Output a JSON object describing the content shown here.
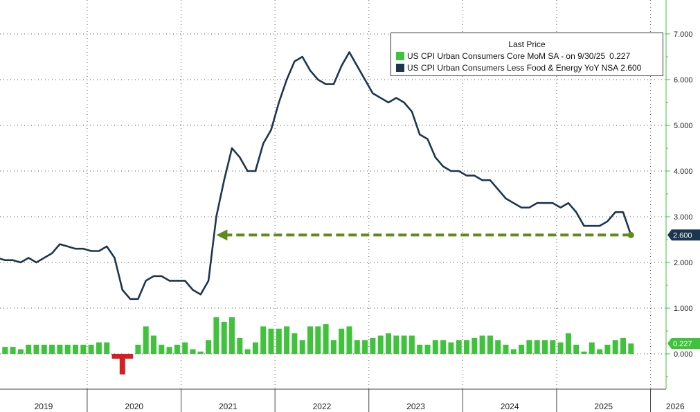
{
  "legend": {
    "title": "Last Price",
    "entries": [
      {
        "label": "US CPI Urban Consumers Core MoM SA -  on 9/30/25",
        "value": "0.227",
        "color": "#3ec33a"
      },
      {
        "label": "US CPI Urban Consumers Less Food & Energy YoY NSA",
        "value": "2.600",
        "color": "#1c3550"
      }
    ]
  },
  "chart_data": {
    "type": "line",
    "title": "",
    "xlabel": "",
    "ylabel": "",
    "ylim": [
      -0.8,
      7.5
    ],
    "yticks": [
      "0.000",
      "1.000",
      "2.000",
      "3.000",
      "4.000",
      "5.000",
      "6.000",
      "7.000"
    ],
    "x_years": [
      "2019",
      "2020",
      "2021",
      "2022",
      "2023",
      "2024",
      "2025",
      "2026"
    ],
    "grid": true,
    "legend_position": "top-right",
    "last_value_tags": {
      "yoy": "2.600",
      "mom": "0.227"
    },
    "series": [
      {
        "name": "US CPI Urban Consumers Less Food & Energy YoY NSA",
        "kind": "line",
        "color": "#1c3550",
        "x": [
          "2018-12",
          "2019-01",
          "2019-02",
          "2019-03",
          "2019-04",
          "2019-05",
          "2019-06",
          "2019-07",
          "2019-08",
          "2019-09",
          "2019-10",
          "2019-11",
          "2019-12",
          "2020-01",
          "2020-02",
          "2020-03",
          "2020-04",
          "2020-05",
          "2020-06",
          "2020-07",
          "2020-08",
          "2020-09",
          "2020-10",
          "2020-11",
          "2020-12",
          "2021-01",
          "2021-02",
          "2021-03",
          "2021-04",
          "2021-05",
          "2021-06",
          "2021-07",
          "2021-08",
          "2021-09",
          "2021-10",
          "2021-11",
          "2021-12",
          "2022-01",
          "2022-02",
          "2022-03",
          "2022-04",
          "2022-05",
          "2022-06",
          "2022-07",
          "2022-08",
          "2022-09",
          "2022-10",
          "2022-11",
          "2022-12",
          "2023-01",
          "2023-02",
          "2023-03",
          "2023-04",
          "2023-05",
          "2023-06",
          "2023-07",
          "2023-08",
          "2023-09",
          "2023-10",
          "2023-11",
          "2023-12",
          "2024-01",
          "2024-02",
          "2024-03",
          "2024-04",
          "2024-05",
          "2024-06",
          "2024-07",
          "2024-08",
          "2024-09",
          "2024-10",
          "2024-11",
          "2024-12",
          "2025-01",
          "2025-02",
          "2025-03",
          "2025-04",
          "2025-05",
          "2025-06",
          "2025-07",
          "2025-08",
          "2025-09"
        ],
        "values": [
          2.1,
          2.05,
          2.05,
          2.0,
          2.1,
          2.0,
          2.1,
          2.2,
          2.4,
          2.35,
          2.3,
          2.3,
          2.25,
          2.25,
          2.35,
          2.1,
          1.4,
          1.2,
          1.2,
          1.6,
          1.7,
          1.7,
          1.6,
          1.6,
          1.6,
          1.4,
          1.3,
          1.6,
          3.0,
          3.8,
          4.5,
          4.3,
          4.0,
          4.0,
          4.6,
          4.9,
          5.5,
          6.0,
          6.4,
          6.5,
          6.2,
          6.0,
          5.9,
          5.9,
          6.3,
          6.6,
          6.3,
          6.0,
          5.7,
          5.6,
          5.5,
          5.6,
          5.5,
          5.3,
          4.8,
          4.7,
          4.3,
          4.1,
          4.0,
          4.0,
          3.9,
          3.9,
          3.8,
          3.8,
          3.6,
          3.4,
          3.3,
          3.2,
          3.2,
          3.3,
          3.3,
          3.3,
          3.2,
          3.3,
          3.1,
          2.8,
          2.8,
          2.8,
          2.9,
          3.1,
          3.1,
          2.6
        ]
      },
      {
        "name": "US CPI Urban Consumers Core MoM SA",
        "kind": "bar",
        "color": "#3ec33a",
        "negative_color": "#d42020",
        "x": [
          "2018-12",
          "2019-01",
          "2019-02",
          "2019-03",
          "2019-04",
          "2019-05",
          "2019-06",
          "2019-07",
          "2019-08",
          "2019-09",
          "2019-10",
          "2019-11",
          "2019-12",
          "2020-01",
          "2020-02",
          "2020-03",
          "2020-04",
          "2020-05",
          "2020-06",
          "2020-07",
          "2020-08",
          "2020-09",
          "2020-10",
          "2020-11",
          "2020-12",
          "2021-01",
          "2021-02",
          "2021-03",
          "2021-04",
          "2021-05",
          "2021-06",
          "2021-07",
          "2021-08",
          "2021-09",
          "2021-10",
          "2021-11",
          "2021-12",
          "2022-01",
          "2022-02",
          "2022-03",
          "2022-04",
          "2022-05",
          "2022-06",
          "2022-07",
          "2022-08",
          "2022-09",
          "2022-10",
          "2022-11",
          "2022-12",
          "2023-01",
          "2023-02",
          "2023-03",
          "2023-04",
          "2023-05",
          "2023-06",
          "2023-07",
          "2023-08",
          "2023-09",
          "2023-10",
          "2023-11",
          "2023-12",
          "2024-01",
          "2024-02",
          "2024-03",
          "2024-04",
          "2024-05",
          "2024-06",
          "2024-07",
          "2024-08",
          "2024-09",
          "2024-10",
          "2024-11",
          "2024-12",
          "2025-01",
          "2025-02",
          "2025-03",
          "2025-04",
          "2025-05",
          "2025-06",
          "2025-07",
          "2025-08",
          "2025-09"
        ],
        "values": [
          0.15,
          0.15,
          0.15,
          0.1,
          0.2,
          0.2,
          0.2,
          0.2,
          0.2,
          0.2,
          0.2,
          0.2,
          0.2,
          0.25,
          0.25,
          -0.1,
          -0.45,
          -0.1,
          0.2,
          0.6,
          0.4,
          0.2,
          0.15,
          0.2,
          0.25,
          0.1,
          0.05,
          0.3,
          0.8,
          0.7,
          0.8,
          0.35,
          0.1,
          0.25,
          0.6,
          0.55,
          0.55,
          0.6,
          0.45,
          0.3,
          0.6,
          0.6,
          0.65,
          0.3,
          0.55,
          0.6,
          0.3,
          0.3,
          0.35,
          0.4,
          0.45,
          0.4,
          0.4,
          0.4,
          0.2,
          0.2,
          0.3,
          0.3,
          0.25,
          0.3,
          0.3,
          0.35,
          0.4,
          0.4,
          0.3,
          0.2,
          0.1,
          0.2,
          0.3,
          0.3,
          0.3,
          0.3,
          0.25,
          0.45,
          0.2,
          0.05,
          0.25,
          0.1,
          0.2,
          0.3,
          0.35,
          0.227
        ]
      }
    ],
    "annotation": {
      "type": "horizontal-arrow",
      "value": 2.6,
      "from": "2025-09",
      "to": "2021-04",
      "color": "#5e8b1a"
    }
  }
}
